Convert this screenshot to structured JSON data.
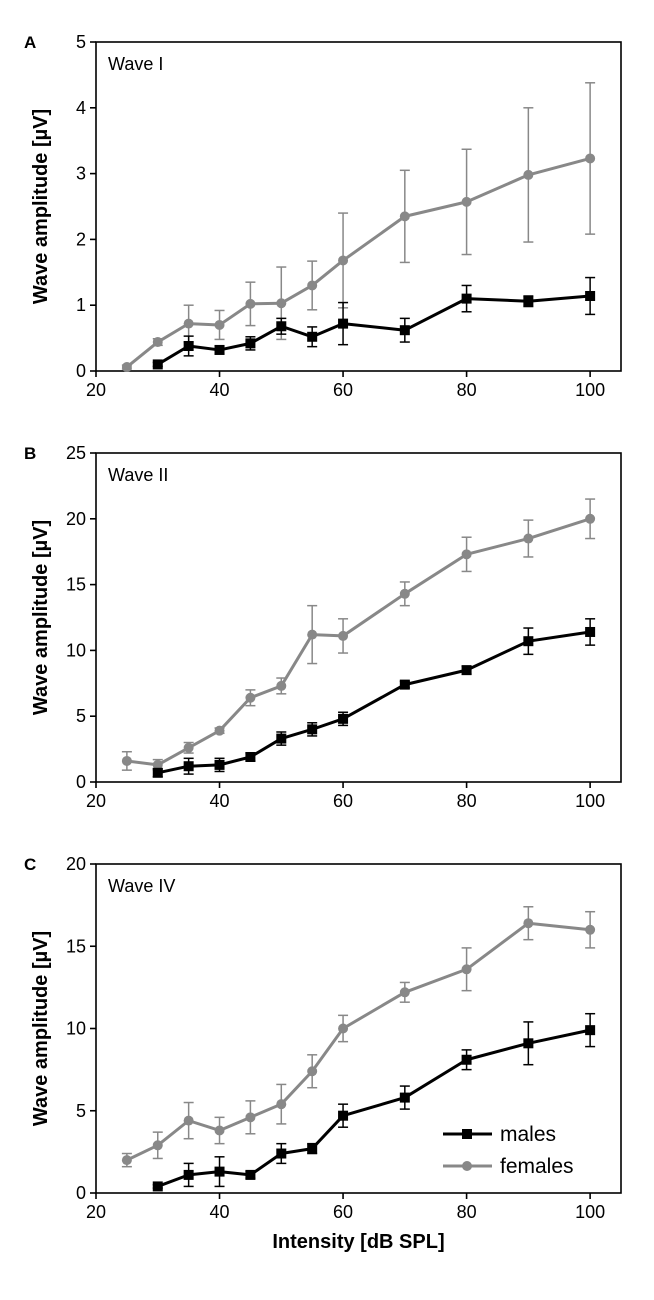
{
  "x_axis_label": "Intensity [dB SPL]",
  "legend": [
    {
      "name": "males",
      "color": "#000000",
      "marker": "square"
    },
    {
      "name": "females",
      "color": "#888888",
      "marker": "circle"
    }
  ],
  "chart_data": [
    {
      "type": "line",
      "panel": "A",
      "title": "Wave I",
      "xlabel": "",
      "ylabel": "Wave amplitude [µV]",
      "xlim": [
        20,
        105
      ],
      "ylim": [
        0,
        5
      ],
      "xticks": [
        20,
        40,
        60,
        80,
        100
      ],
      "yticks": [
        0,
        1,
        2,
        3,
        4,
        5
      ],
      "series": [
        {
          "name": "males",
          "color": "#000000",
          "marker": "square",
          "x": [
            30,
            35,
            40,
            45,
            50,
            55,
            60,
            70,
            80,
            90,
            100
          ],
          "values": [
            0.1,
            0.38,
            0.32,
            0.42,
            0.68,
            0.52,
            0.72,
            0.62,
            1.1,
            1.06,
            1.14
          ],
          "errors": [
            0.03,
            0.15,
            0.06,
            0.1,
            0.12,
            0.15,
            0.32,
            0.18,
            0.2,
            0.08,
            0.28
          ]
        },
        {
          "name": "females",
          "color": "#888888",
          "marker": "circle",
          "x": [
            25,
            30,
            35,
            40,
            45,
            50,
            55,
            60,
            70,
            80,
            90,
            100
          ],
          "values": [
            0.06,
            0.44,
            0.72,
            0.7,
            1.02,
            1.03,
            1.3,
            1.68,
            2.35,
            2.57,
            2.98,
            3.23
          ],
          "errors": [
            0.03,
            0.05,
            0.28,
            0.22,
            0.33,
            0.55,
            0.37,
            0.72,
            0.7,
            0.8,
            1.02,
            1.15
          ]
        }
      ]
    },
    {
      "type": "line",
      "panel": "B",
      "title": "Wave II",
      "xlabel": "",
      "ylabel": "Wave amplitude [µV]",
      "xlim": [
        20,
        105
      ],
      "ylim": [
        0,
        25
      ],
      "xticks": [
        20,
        40,
        60,
        80,
        100
      ],
      "yticks": [
        0,
        5,
        10,
        15,
        20,
        25
      ],
      "series": [
        {
          "name": "males",
          "color": "#000000",
          "marker": "square",
          "x": [
            30,
            35,
            40,
            45,
            50,
            55,
            60,
            70,
            80,
            90,
            100
          ],
          "values": [
            0.7,
            1.2,
            1.3,
            1.9,
            3.3,
            4.0,
            4.8,
            7.4,
            8.5,
            10.7,
            11.4
          ],
          "errors": [
            0.3,
            0.6,
            0.5,
            0.3,
            0.5,
            0.5,
            0.5,
            0.25,
            0.3,
            1.0,
            1.0
          ]
        },
        {
          "name": "females",
          "color": "#888888",
          "marker": "circle",
          "x": [
            25,
            30,
            35,
            40,
            45,
            50,
            55,
            60,
            70,
            80,
            90,
            100
          ],
          "values": [
            1.6,
            1.3,
            2.6,
            3.9,
            6.4,
            7.3,
            11.2,
            11.1,
            14.3,
            17.3,
            18.5,
            20.0
          ],
          "errors": [
            0.7,
            0.4,
            0.4,
            0.2,
            0.6,
            0.6,
            2.2,
            1.3,
            0.9,
            1.3,
            1.4,
            1.5
          ]
        }
      ]
    },
    {
      "type": "line",
      "panel": "C",
      "title": "Wave IV",
      "xlabel": "Intensity [dB SPL]",
      "ylabel": "Wave amplitude [µV]",
      "xlim": [
        20,
        105
      ],
      "ylim": [
        0,
        20
      ],
      "xticks": [
        20,
        40,
        60,
        80,
        100
      ],
      "yticks": [
        0,
        5,
        10,
        15,
        20
      ],
      "series": [
        {
          "name": "males",
          "color": "#000000",
          "marker": "square",
          "x": [
            30,
            35,
            40,
            45,
            50,
            55,
            60,
            70,
            80,
            90,
            100
          ],
          "values": [
            0.4,
            1.1,
            1.3,
            1.1,
            2.4,
            2.7,
            4.7,
            5.8,
            8.1,
            9.1,
            9.9
          ],
          "errors": [
            0.1,
            0.7,
            0.9,
            0.2,
            0.6,
            0.3,
            0.7,
            0.7,
            0.6,
            1.3,
            1.0
          ]
        },
        {
          "name": "females",
          "color": "#888888",
          "marker": "circle",
          "x": [
            25,
            30,
            35,
            40,
            45,
            50,
            55,
            60,
            70,
            80,
            90,
            100
          ],
          "values": [
            2.0,
            2.9,
            4.4,
            3.8,
            4.6,
            5.4,
            7.4,
            10.0,
            12.2,
            13.6,
            16.4,
            16.0
          ],
          "errors": [
            0.4,
            0.8,
            1.1,
            0.8,
            1.0,
            1.2,
            1.0,
            0.8,
            0.6,
            1.3,
            1.0,
            1.1
          ]
        }
      ]
    }
  ]
}
